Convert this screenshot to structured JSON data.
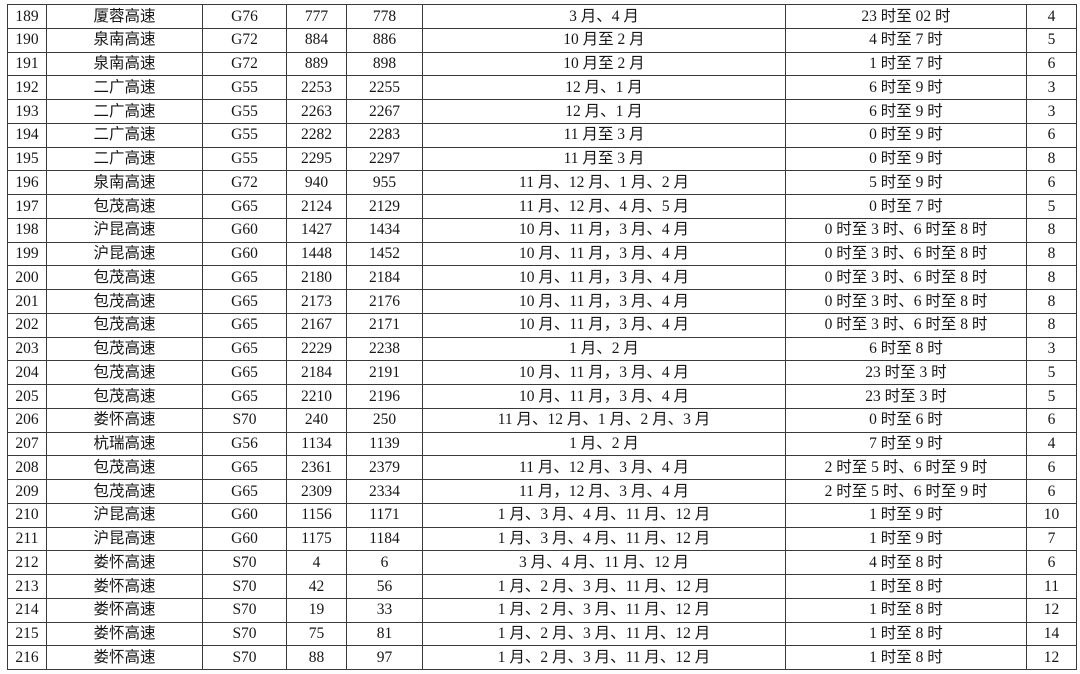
{
  "page_background": "#ffffff",
  "table": {
    "border_color": "#3a3a3a",
    "text_color": "#161616",
    "column_keys": [
      "no",
      "road",
      "code",
      "start",
      "end",
      "months",
      "hours",
      "count"
    ],
    "rows": [
      {
        "no": "189",
        "road": "厦蓉高速",
        "code": "G76",
        "start": "777",
        "end": "778",
        "months": "3 月、4 月",
        "hours": "23 时至 02 时",
        "count": "4"
      },
      {
        "no": "190",
        "road": "泉南高速",
        "code": "G72",
        "start": "884",
        "end": "886",
        "months": "10 月至 2 月",
        "hours": "4 时至 7 时",
        "count": "5"
      },
      {
        "no": "191",
        "road": "泉南高速",
        "code": "G72",
        "start": "889",
        "end": "898",
        "months": "10 月至 2 月",
        "hours": "1 时至 7 时",
        "count": "6"
      },
      {
        "no": "192",
        "road": "二广高速",
        "code": "G55",
        "start": "2253",
        "end": "2255",
        "months": "12 月、1 月",
        "hours": "6 时至 9 时",
        "count": "3"
      },
      {
        "no": "193",
        "road": "二广高速",
        "code": "G55",
        "start": "2263",
        "end": "2267",
        "months": "12 月、1 月",
        "hours": "6 时至 9 时",
        "count": "3"
      },
      {
        "no": "194",
        "road": "二广高速",
        "code": "G55",
        "start": "2282",
        "end": "2283",
        "months": "11 月至 3 月",
        "hours": "0 时至 9 时",
        "count": "6"
      },
      {
        "no": "195",
        "road": "二广高速",
        "code": "G55",
        "start": "2295",
        "end": "2297",
        "months": "11 月至 3 月",
        "hours": "0 时至 9 时",
        "count": "8"
      },
      {
        "no": "196",
        "road": "泉南高速",
        "code": "G72",
        "start": "940",
        "end": "955",
        "months": "11 月、12 月、1 月、2 月",
        "hours": "5 时至 9 时",
        "count": "6"
      },
      {
        "no": "197",
        "road": "包茂高速",
        "code": "G65",
        "start": "2124",
        "end": "2129",
        "months": "11 月、12 月、4 月、5 月",
        "hours": "0 时至 7 时",
        "count": "5"
      },
      {
        "no": "198",
        "road": "沪昆高速",
        "code": "G60",
        "start": "1427",
        "end": "1434",
        "months": "10 月、11 月，3 月、4 月",
        "hours": "0 时至 3 时、6 时至 8 时",
        "count": "8"
      },
      {
        "no": "199",
        "road": "沪昆高速",
        "code": "G60",
        "start": "1448",
        "end": "1452",
        "months": "10 月、11 月，3 月、4 月",
        "hours": "0 时至 3 时、6 时至 8 时",
        "count": "8"
      },
      {
        "no": "200",
        "road": "包茂高速",
        "code": "G65",
        "start": "2180",
        "end": "2184",
        "months": "10 月、11 月，3 月、4 月",
        "hours": "0 时至 3 时、6 时至 8 时",
        "count": "8"
      },
      {
        "no": "201",
        "road": "包茂高速",
        "code": "G65",
        "start": "2173",
        "end": "2176",
        "months": "10 月、11 月，3 月、4 月",
        "hours": "0 时至 3 时、6 时至 8 时",
        "count": "8"
      },
      {
        "no": "202",
        "road": "包茂高速",
        "code": "G65",
        "start": "2167",
        "end": "2171",
        "months": "10 月、11 月，3 月、4 月",
        "hours": "0 时至 3 时、6 时至 8 时",
        "count": "8"
      },
      {
        "no": "203",
        "road": "包茂高速",
        "code": "G65",
        "start": "2229",
        "end": "2238",
        "months": "1 月、2 月",
        "hours": "6 时至 8 时",
        "count": "3"
      },
      {
        "no": "204",
        "road": "包茂高速",
        "code": "G65",
        "start": "2184",
        "end": "2191",
        "months": "10 月、11 月，3 月、4 月",
        "hours": "23 时至 3 时",
        "count": "5"
      },
      {
        "no": "205",
        "road": "包茂高速",
        "code": "G65",
        "start": "2210",
        "end": "2196",
        "months": "10 月、11 月，3 月、4 月",
        "hours": "23 时至 3 时",
        "count": "5"
      },
      {
        "no": "206",
        "road": "娄怀高速",
        "code": "S70",
        "start": "240",
        "end": "250",
        "months": "11 月、12 月、1 月、2 月、3 月",
        "hours": "0 时至 6 时",
        "count": "6"
      },
      {
        "no": "207",
        "road": "杭瑞高速",
        "code": "G56",
        "start": "1134",
        "end": "1139",
        "months": "1 月、2 月",
        "hours": "7 时至 9 时",
        "count": "4"
      },
      {
        "no": "208",
        "road": "包茂高速",
        "code": "G65",
        "start": "2361",
        "end": "2379",
        "months": "11 月、12 月、3 月、4 月",
        "hours": "2 时至 5 时、6 时至 9 时",
        "count": "6"
      },
      {
        "no": "209",
        "road": "包茂高速",
        "code": "G65",
        "start": "2309",
        "end": "2334",
        "months": "11 月，12 月、3 月、4 月",
        "hours": "2 时至 5 时、6 时至 9 时",
        "count": "6"
      },
      {
        "no": "210",
        "road": "沪昆高速",
        "code": "G60",
        "start": "1156",
        "end": "1171",
        "months": "1 月、3 月、4 月、11 月、12 月",
        "hours": "1 时至 9 时",
        "count": "10"
      },
      {
        "no": "211",
        "road": "沪昆高速",
        "code": "G60",
        "start": "1175",
        "end": "1184",
        "months": "1 月、3 月、4 月、11 月、12 月",
        "hours": "1 时至 9 时",
        "count": "7"
      },
      {
        "no": "212",
        "road": "娄怀高速",
        "code": "S70",
        "start": "4",
        "end": "6",
        "months": "3 月、4 月、11 月、12 月",
        "hours": "4 时至 8 时",
        "count": "6"
      },
      {
        "no": "213",
        "road": "娄怀高速",
        "code": "S70",
        "start": "42",
        "end": "56",
        "months": "1 月、2 月、3 月、11 月、12 月",
        "hours": "1 时至 8 时",
        "count": "11"
      },
      {
        "no": "214",
        "road": "娄怀高速",
        "code": "S70",
        "start": "19",
        "end": "33",
        "months": "1 月、2 月、3 月、11 月、12 月",
        "hours": "1 时至 8 时",
        "count": "12"
      },
      {
        "no": "215",
        "road": "娄怀高速",
        "code": "S70",
        "start": "75",
        "end": "81",
        "months": "1 月、2 月、3 月、11 月、12 月",
        "hours": "1 时至 8 时",
        "count": "14"
      },
      {
        "no": "216",
        "road": "娄怀高速",
        "code": "S70",
        "start": "88",
        "end": "97",
        "months": "1 月、2 月、3 月、11 月、12 月",
        "hours": "1 时至 8 时",
        "count": "12"
      }
    ]
  }
}
